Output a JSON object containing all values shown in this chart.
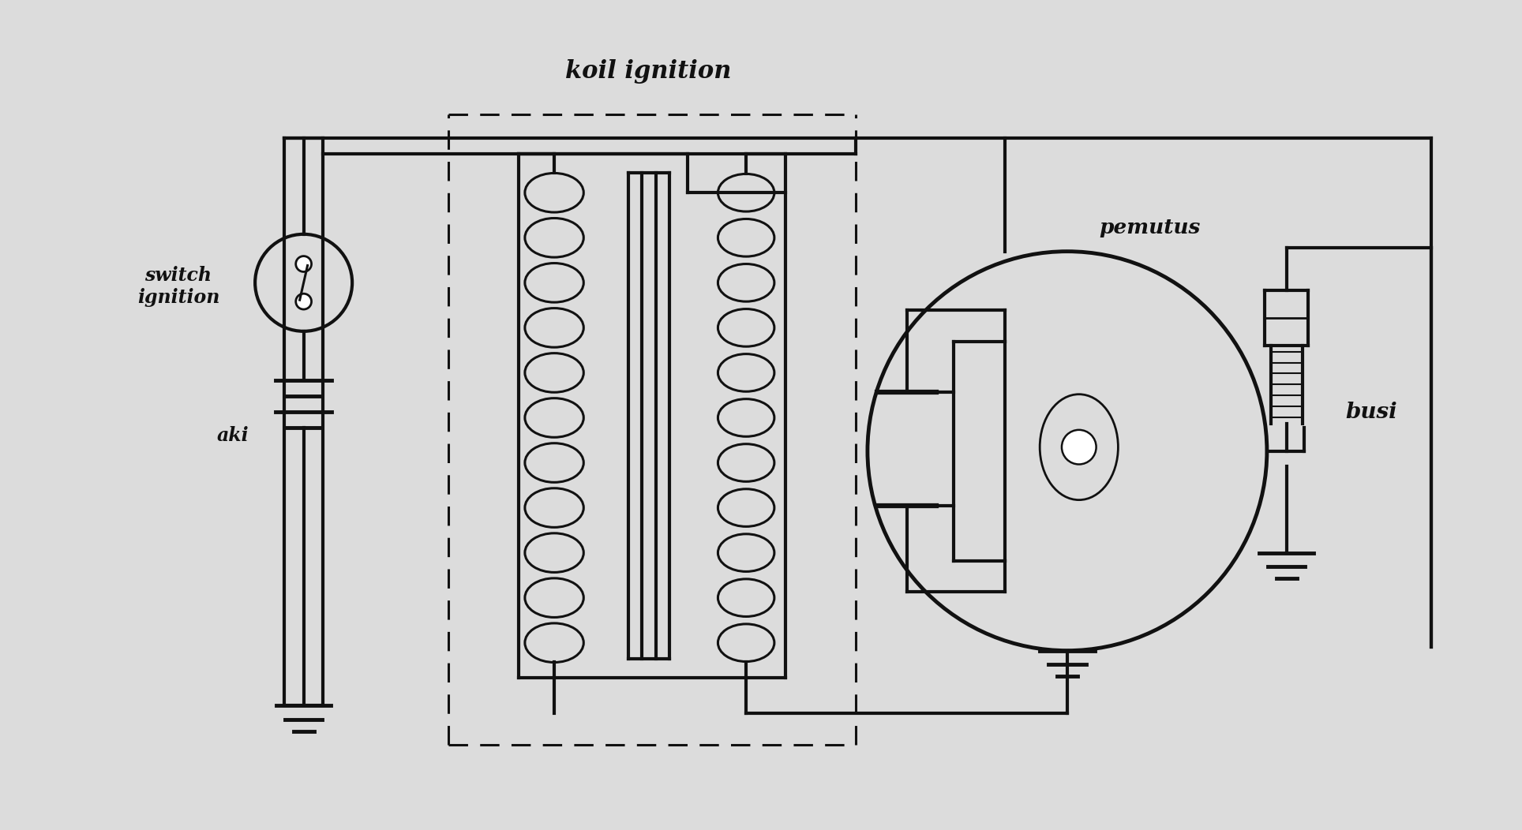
{
  "bg_color": "#dcdcdc",
  "line_color": "#111111",
  "labels": {
    "switch_ignition": "switch\nignition",
    "aki": "aki",
    "koil_ignition": "koil ignition",
    "pemutus": "pemutus",
    "busi": "busi"
  },
  "layout": {
    "figw": 19.28,
    "figh": 10.52,
    "xmax": 19.28,
    "ymax": 10.52
  }
}
